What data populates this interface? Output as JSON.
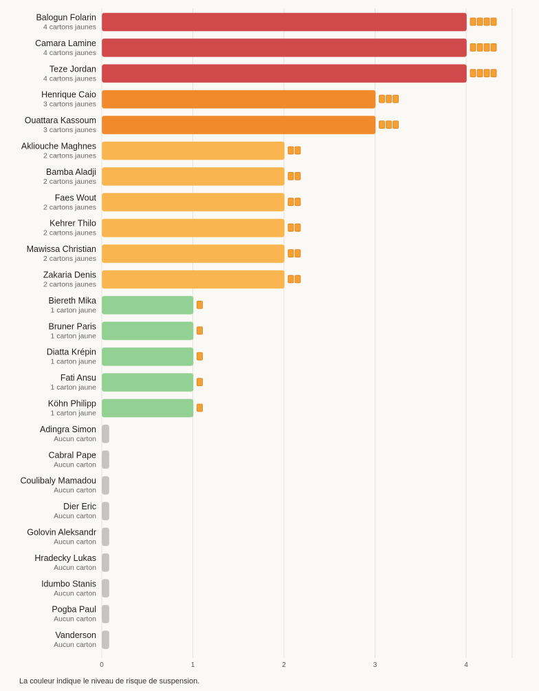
{
  "chart_data": {
    "type": "bar",
    "orientation": "horizontal",
    "xlim": [
      0,
      4.5
    ],
    "x_ticks": [
      0,
      1,
      2,
      3,
      4
    ],
    "grid": true,
    "unit_label_singular": "carton jaune",
    "unit_label_plural": "cartons jaunes",
    "zero_label": "Aucun carton",
    "colors": {
      "4": "#d04a4c",
      "3": "#f08a2a",
      "2": "#f9b54f",
      "1": "#93d093",
      "0": "#c6c4c0",
      "card": "#f4a032",
      "card_border": "#d9821f",
      "grid": "#e6e3de"
    },
    "categories": [
      "Balogun Folarin",
      "Camara Lamine",
      "Teze Jordan",
      "Henrique Caio",
      "Ouattara Kassoum",
      "Akliouche Maghnes",
      "Bamba Aladji",
      "Faes Wout",
      "Kehrer Thilo",
      "Mawissa Christian",
      "Zakaria Denis",
      "Biereth Mika",
      "Bruner Paris",
      "Diatta Krépin",
      "Fati Ansu",
      "Köhn Philipp",
      "Adingra Simon",
      "Cabral Pape",
      "Coulibaly Mamadou",
      "Dier Eric",
      "Golovin Aleksandr",
      "Hradecky Lukas",
      "Idumbo Stanis",
      "Pogba Paul",
      "Vanderson"
    ],
    "values": [
      4,
      4,
      4,
      3,
      3,
      2,
      2,
      2,
      2,
      2,
      2,
      1,
      1,
      1,
      1,
      1,
      0,
      0,
      0,
      0,
      0,
      0,
      0,
      0,
      0
    ],
    "sublabels": [
      "4 cartons jaunes",
      "4 cartons jaunes",
      "4 cartons jaunes",
      "3 cartons jaunes",
      "3 cartons jaunes",
      "2 cartons jaunes",
      "2 cartons jaunes",
      "2 cartons jaunes",
      "2 cartons jaunes",
      "2 cartons jaunes",
      "2 cartons jaunes",
      "1 carton jaune",
      "1 carton jaune",
      "1 carton jaune",
      "1 carton jaune",
      "1 carton jaune",
      "Aucun carton",
      "Aucun carton",
      "Aucun carton",
      "Aucun carton",
      "Aucun carton",
      "Aucun carton",
      "Aucun carton",
      "Aucun carton",
      "Aucun carton"
    ]
  },
  "footnote": "La couleur indique le niveau de risque de suspension."
}
